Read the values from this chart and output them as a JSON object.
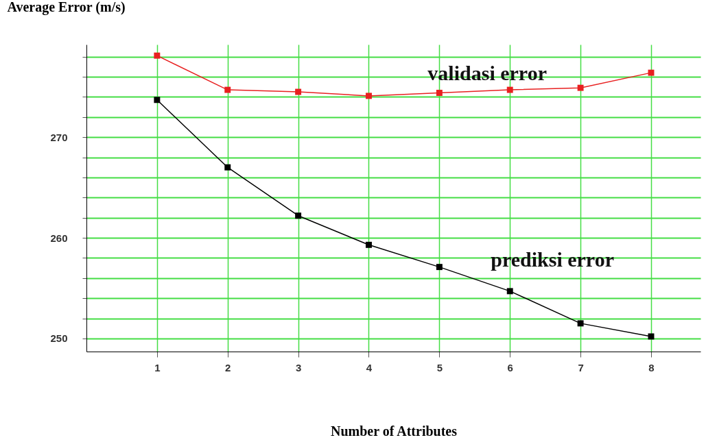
{
  "chart_data": {
    "type": "line",
    "xlabel": "Number of Attributes",
    "ylabel": "Average Error (m/s)",
    "x": [
      1,
      2,
      3,
      4,
      5,
      6,
      7,
      8
    ],
    "series": [
      {
        "name": "validasi error",
        "color": "#e82020",
        "values": [
          278.1,
          274.7,
          274.5,
          274.1,
          274.4,
          274.7,
          274.9,
          276.4
        ]
      },
      {
        "name": "prediksi error",
        "color": "#000000",
        "values": [
          273.7,
          267.0,
          262.2,
          259.3,
          257.1,
          254.7,
          251.5,
          250.2
        ]
      }
    ],
    "xlim": [
      0,
      8.7
    ],
    "xticks": [
      1,
      2,
      3,
      4,
      5,
      6,
      7,
      8
    ],
    "ylim": [
      248.7,
      279.2
    ],
    "yticks": [
      250,
      {
        "value": 252,
        "label": null
      },
      {
        "value": 254,
        "label": null
      },
      {
        "value": 256,
        "label": null
      },
      {
        "value": 258,
        "label": null
      },
      260,
      {
        "value": 262,
        "label": null
      },
      {
        "value": 264,
        "label": null
      },
      {
        "value": 266,
        "label": null
      },
      {
        "value": 268,
        "label": null
      },
      270,
      {
        "value": 272,
        "label": null
      },
      {
        "value": 274,
        "label": null
      },
      {
        "value": 276,
        "label": null
      },
      {
        "value": 278,
        "label": null
      }
    ],
    "grid": true,
    "marker": "square",
    "line_style": "solid"
  }
}
